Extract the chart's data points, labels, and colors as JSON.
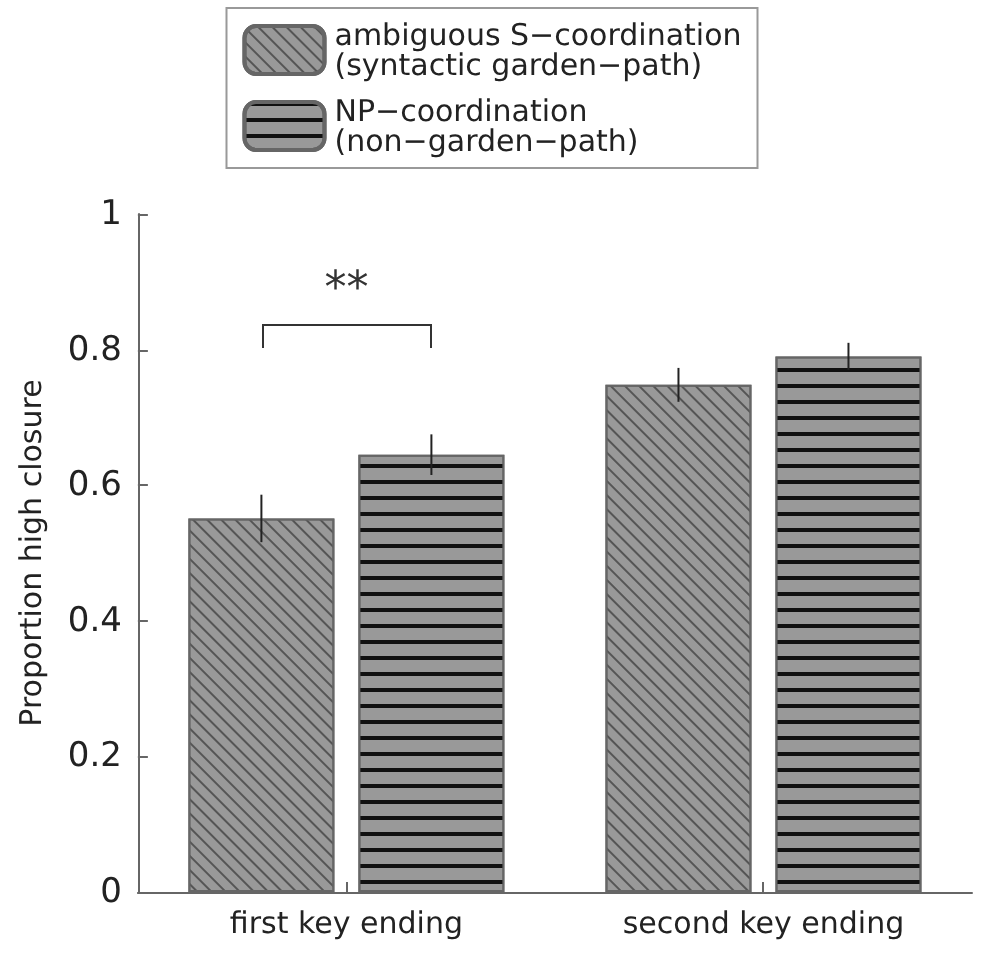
{
  "chart_data": {
    "type": "bar",
    "ylabel": "Proportion high closure",
    "categories": [
      "first key ending",
      "second key ending"
    ],
    "series": [
      {
        "name": "ambiguous S−coordination\n(syntactic garden−path)",
        "color": "#999999",
        "values": [
          0.551,
          0.748
        ],
        "errors": [
          0.035,
          0.025
        ]
      },
      {
        "name": "NP−coordination\n(non−garden−path)",
        "color": "#999999",
        "values": [
          0.645,
          0.79
        ],
        "errors": [
          0.03,
          0.02
        ]
      }
    ],
    "ylim": [
      0,
      1
    ],
    "yticks": [
      0,
      0.2,
      0.4,
      0.6,
      0.8,
      1
    ],
    "annotations": [
      "**"
    ],
    "grid": false,
    "legend": "top"
  }
}
